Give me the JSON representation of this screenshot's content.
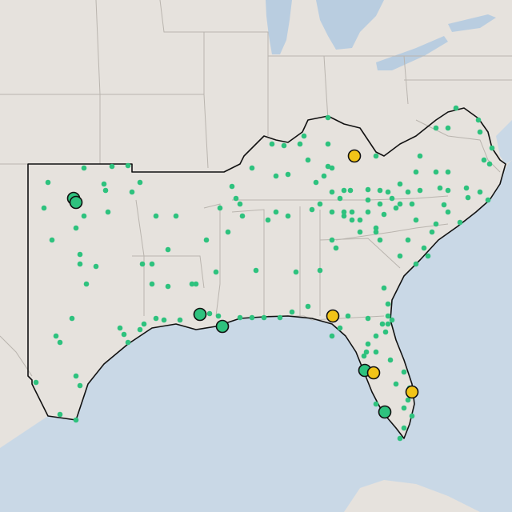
{
  "map": {
    "base_colors": {
      "land": "#e6e2dd",
      "water": "#c9d8e6",
      "lake": "#b9cde0",
      "state_border": "#b9b4ae",
      "region_outline": "#111111"
    },
    "small_point_color": "#2ec27e",
    "large_point_colors": {
      "green": "#2ec27e",
      "yellow": "#f2c418"
    }
  }
}
